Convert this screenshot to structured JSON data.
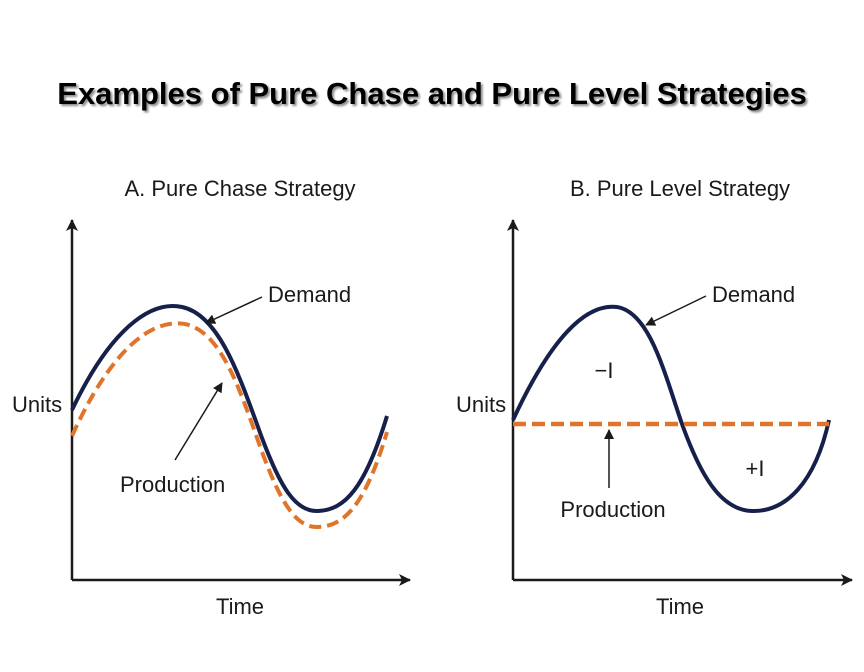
{
  "title": "Examples of Pure Chase and Pure Level Strategies",
  "colors": {
    "demand": "#16204a",
    "production": "#e0742a",
    "axis": "#1a1a1a"
  },
  "panel_a": {
    "subtitle": "A. Pure Chase Strategy",
    "y_label": "Units",
    "x_label": "Time",
    "demand_label": "Demand",
    "production_label": "Production"
  },
  "panel_b": {
    "subtitle": "B. Pure Level Strategy",
    "y_label": "Units",
    "x_label": "Time",
    "demand_label": "Demand",
    "production_label": "Production",
    "minus_inventory_label": "−I",
    "plus_inventory_label": "+I"
  }
}
